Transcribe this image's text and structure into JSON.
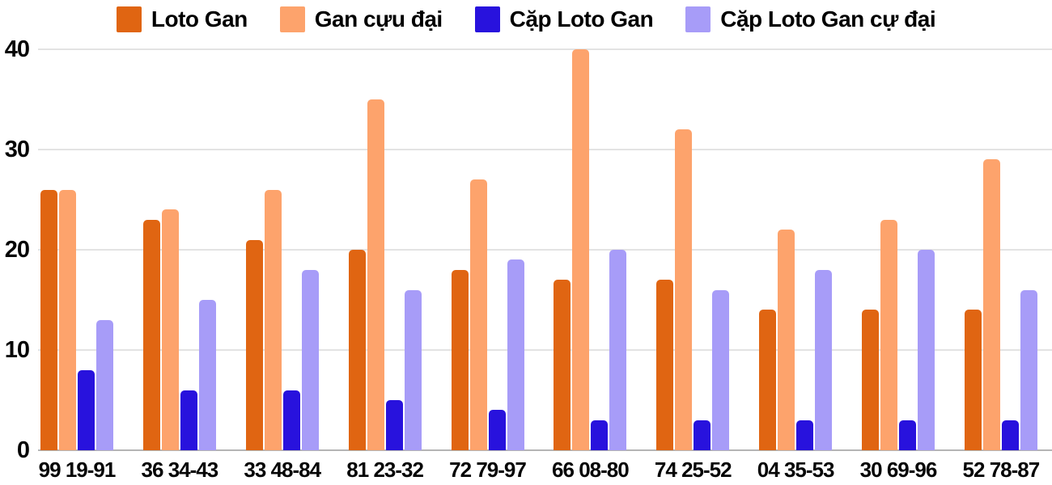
{
  "chart_data": {
    "type": "bar",
    "title": "",
    "xlabel": "",
    "ylabel": "",
    "ylim": [
      0,
      40
    ],
    "grid": true,
    "legend_position": "top",
    "y_axis": {
      "ticks": [
        0,
        10,
        20,
        30,
        40
      ],
      "max": 40
    },
    "categories": [
      "99 19-91",
      "36 34-43",
      "33 48-84",
      "81 23-32",
      "72 79-97",
      "66 08-80",
      "74 25-52",
      "04 35-53",
      "30 69-96",
      "52 78-87"
    ],
    "series": [
      {
        "name": "Loto Gan",
        "color": "#e06512",
        "values": [
          26,
          23,
          21,
          20,
          18,
          17,
          17,
          14,
          14,
          14
        ]
      },
      {
        "name": "Gan cựu đại",
        "color": "#fda36c",
        "values": [
          26,
          24,
          26,
          35,
          27,
          40,
          32,
          22,
          23,
          29
        ]
      },
      {
        "name": "Cặp Loto Gan",
        "color": "#2812dd",
        "values": [
          8,
          6,
          6,
          5,
          4,
          3,
          3,
          3,
          3,
          3
        ]
      },
      {
        "name": "Cặp Loto Gan cự đại",
        "color": "#a79cf8",
        "values": [
          13,
          15,
          18,
          16,
          19,
          20,
          16,
          18,
          20,
          16
        ]
      }
    ],
    "colors": {
      "gridline": "#e3e3e3",
      "axis_baseline": "#b5b5b5",
      "label_text": "#050505"
    }
  }
}
